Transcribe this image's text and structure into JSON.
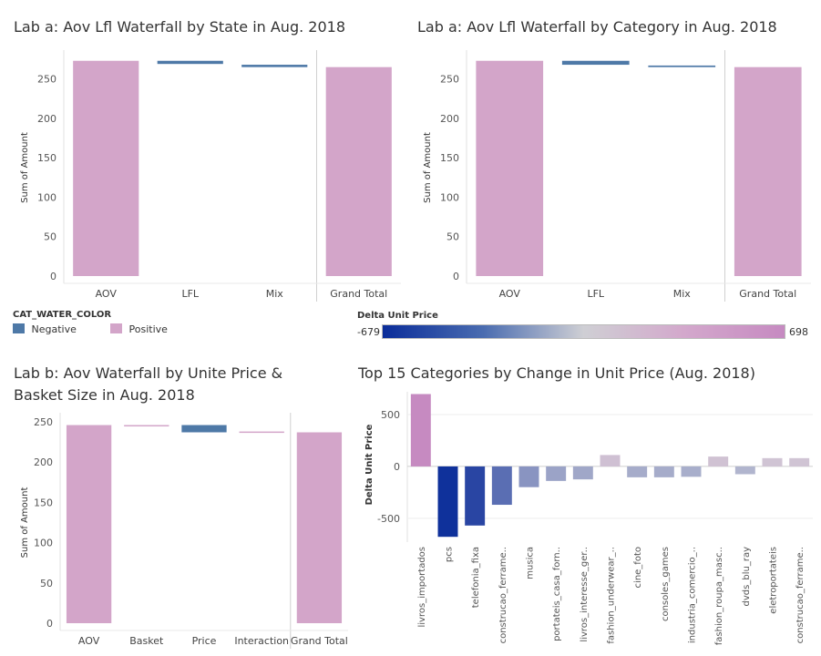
{
  "colors": {
    "positive": "#d3a5c9",
    "negative": "#4e79a7"
  },
  "legend_color": {
    "title": "CAT_WATER_COLOR",
    "items": [
      {
        "label": "Negative",
        "color": "#4e79a7"
      },
      {
        "label": "Positive",
        "color": "#d3a5c9"
      }
    ]
  },
  "legend_gradient": {
    "title": "Delta Unit Price",
    "min_label": "-679",
    "max_label": "698"
  },
  "chart_data": [
    {
      "type": "bar",
      "title": "Lab a: Aov Lfl Waterfall by State in Aug. 2018",
      "ylabel": "Sum of Amount",
      "ylim": [
        0,
        275
      ],
      "yticks": [
        0,
        50,
        100,
        150,
        200,
        250
      ],
      "categories": [
        "AOV",
        "LFL",
        "Mix",
        "Grand Total"
      ],
      "bars": [
        {
          "category": "AOV",
          "start": 0,
          "end": 273,
          "sign": "positive"
        },
        {
          "category": "LFL",
          "start": 273,
          "end": 269,
          "sign": "negative"
        },
        {
          "category": "Mix",
          "start": 268,
          "end": 265,
          "sign": "negative"
        },
        {
          "category": "Grand Total",
          "start": 0,
          "end": 265,
          "sign": "positive"
        }
      ]
    },
    {
      "type": "bar",
      "title": "Lab a: Aov Lfl Waterfall by Category in Aug. 2018",
      "ylabel": "Sum of Amount",
      "ylim": [
        0,
        275
      ],
      "yticks": [
        0,
        50,
        100,
        150,
        200,
        250
      ],
      "categories": [
        "AOV",
        "LFL",
        "Mix",
        "Grand Total"
      ],
      "bars": [
        {
          "category": "AOV",
          "start": 0,
          "end": 273,
          "sign": "positive"
        },
        {
          "category": "LFL",
          "start": 273,
          "end": 268,
          "sign": "negative"
        },
        {
          "category": "Mix",
          "start": 267,
          "end": 265,
          "sign": "negative"
        },
        {
          "category": "Grand Total",
          "start": 0,
          "end": 265,
          "sign": "positive"
        }
      ]
    },
    {
      "type": "bar",
      "title": "Lab b: Aov Waterfall by Unite Price & Basket Size in Aug. 2018",
      "ylabel": "Sum of Amount",
      "ylim": [
        0,
        250
      ],
      "yticks": [
        0,
        50,
        100,
        150,
        200,
        250
      ],
      "categories": [
        "AOV",
        "Basket",
        "Price",
        "Interaction",
        "Grand Total"
      ],
      "bars": [
        {
          "category": "AOV",
          "start": 0,
          "end": 246,
          "sign": "positive"
        },
        {
          "category": "Basket",
          "start": 246,
          "end": 245,
          "sign": "positive"
        },
        {
          "category": "Price",
          "start": 246,
          "end": 237,
          "sign": "negative"
        },
        {
          "category": "Interaction",
          "start": 238,
          "end": 237,
          "sign": "positive"
        },
        {
          "category": "Grand Total",
          "start": 0,
          "end": 237,
          "sign": "positive"
        }
      ]
    },
    {
      "type": "bar",
      "title": "Top 15 Categories by Change in Unit Price (Aug. 2018)",
      "ylabel": "Delta Unit Price",
      "ylim": [
        -730,
        720
      ],
      "yticks": [
        -500,
        0,
        500
      ],
      "categories": [
        "livros_importados",
        "pcs",
        "telefonia_fixa",
        "construcao_ferrame..",
        "musica",
        "portateis_casa_forn..",
        "livros_interesse_ger..",
        "fashion_underwear_..",
        "cine_foto",
        "consoles_games",
        "industria_comercio_..",
        "fashion_roupa_masc..",
        "dvds_blu_ray",
        "eletroportateis",
        "construcao_ferrame.."
      ],
      "values": [
        698,
        -679,
        -570,
        -370,
        -200,
        -140,
        -125,
        110,
        -105,
        -105,
        -100,
        95,
        -75,
        80,
        80
      ]
    }
  ]
}
